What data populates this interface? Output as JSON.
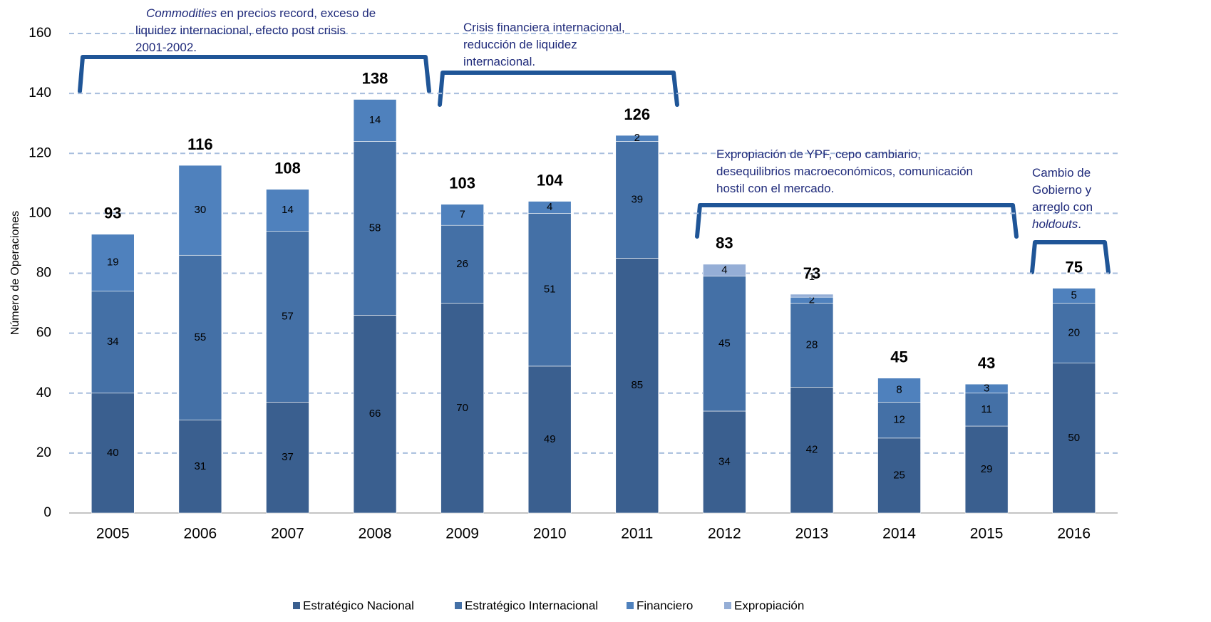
{
  "chart_data": {
    "type": "stacked_bar",
    "y_label": "Número de Operaciones",
    "categories": [
      "2005",
      "2006",
      "2007",
      "2008",
      "2009",
      "2010",
      "2011",
      "2012",
      "2013",
      "2014",
      "2015",
      "2016"
    ],
    "series": [
      {
        "name": "Estratégico Nacional",
        "color": "#3a5f8f",
        "values": [
          40,
          31,
          37,
          66,
          70,
          49,
          85,
          34,
          42,
          25,
          29,
          50
        ]
      },
      {
        "name": "Estratégico Internacional",
        "color": "#4470a6",
        "values": [
          34,
          55,
          57,
          58,
          26,
          51,
          39,
          45,
          28,
          12,
          11,
          20
        ]
      },
      {
        "name": "Financiero",
        "color": "#4f81bd",
        "values": [
          19,
          30,
          14,
          14,
          7,
          4,
          2,
          null,
          2,
          8,
          3,
          5
        ]
      },
      {
        "name": "Expropiación",
        "color": "#95aed6",
        "values": [
          null,
          null,
          null,
          null,
          null,
          null,
          null,
          4,
          1,
          null,
          null,
          null
        ]
      }
    ],
    "totals": [
      93,
      116,
      108,
      138,
      103,
      104,
      126,
      83,
      73,
      45,
      43,
      75
    ],
    "ylim": [
      0,
      160
    ],
    "yticks": [
      0,
      20,
      40,
      60,
      80,
      100,
      120,
      140,
      160
    ],
    "grid": true,
    "legend": "bottom",
    "annotations": [
      {
        "lines": [
          [
            {
              "text": "Commodities",
              "italic": true
            },
            {
              "text": " en precios record, exceso de"
            }
          ],
          [
            {
              "text": "liquidez internacional, efecto post crisis"
            }
          ],
          [
            {
              "text": "2001-2002."
            }
          ]
        ]
      },
      {
        "lines": [
          [
            {
              "text": "Crisis financiera internacional,"
            }
          ],
          [
            {
              "text": "reducción de liquidez"
            }
          ],
          [
            {
              "text": "internacional."
            }
          ]
        ]
      },
      {
        "lines": [
          [
            {
              "text": "Expropiación de YPF, cepo cambiario,"
            }
          ],
          [
            {
              "text": "desequilibrios macroeconómicos, comunicación"
            }
          ],
          [
            {
              "text": "hostil con el mercado."
            }
          ]
        ]
      },
      {
        "lines": [
          [
            {
              "text": "Cambio de"
            }
          ],
          [
            {
              "text": "Gobierno y"
            }
          ],
          [
            {
              "text": "arreglo con"
            }
          ],
          [
            {
              "text": "holdouts",
              "italic": true
            },
            {
              "text": "."
            }
          ]
        ]
      }
    ]
  }
}
